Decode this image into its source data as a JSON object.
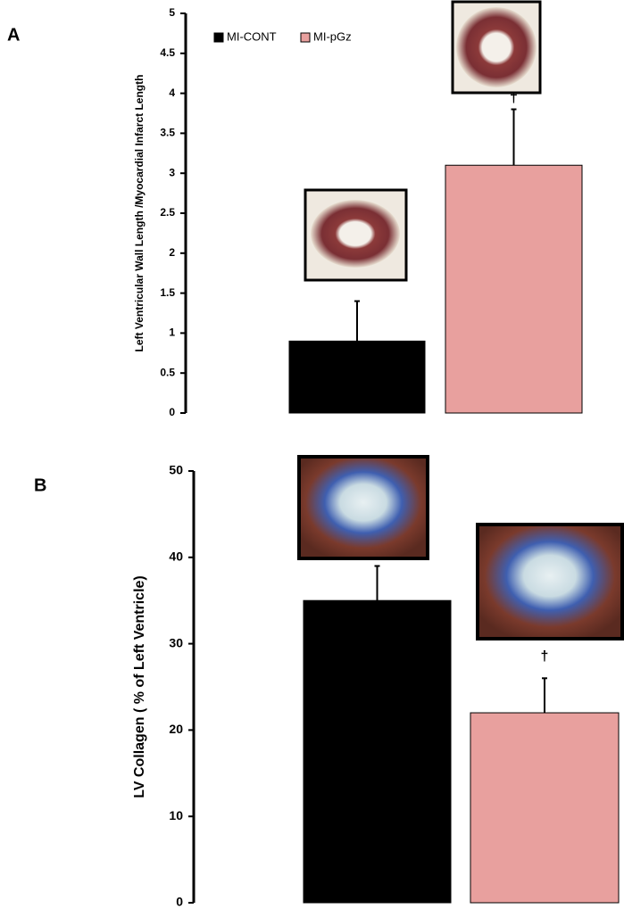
{
  "chart_data": [
    {
      "type": "bar",
      "panel_label": "A",
      "y_label": "Left Ventricular Wall Length /Myocardial Infarct Length",
      "series": [
        {
          "name": "MI-CONT",
          "color": "#000000",
          "values": [
            0.9
          ],
          "errors": [
            0.5
          ]
        },
        {
          "name": "MI-pGz",
          "color": "#e8a09e",
          "values": [
            3.1
          ],
          "errors": [
            0.7
          ]
        }
      ],
      "annotation": "†",
      "ylim": [
        0,
        5
      ],
      "yticks": [
        0,
        0.5,
        1,
        1.5,
        2,
        2.5,
        3,
        3.5,
        4,
        4.5,
        5
      ]
    },
    {
      "type": "bar",
      "panel_label": "B",
      "y_label": "LV Collagen ( % of Left Ventricle)",
      "series": [
        {
          "color": "#000000",
          "values": [
            35
          ],
          "errors": [
            4
          ]
        },
        {
          "color": "#e8a09e",
          "values": [
            22
          ],
          "errors": [
            4
          ]
        }
      ],
      "annotation": "†",
      "ylim": [
        0,
        50
      ],
      "yticks": [
        0,
        10,
        20,
        30,
        40,
        50
      ]
    }
  ]
}
